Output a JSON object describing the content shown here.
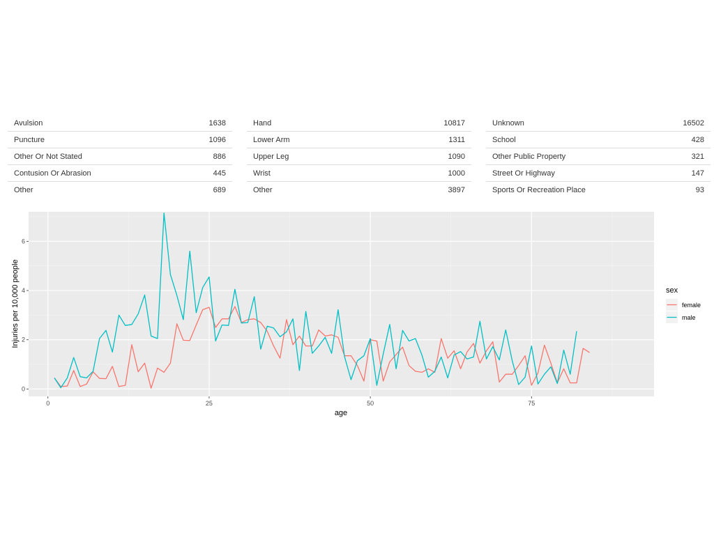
{
  "tables": [
    {
      "rows": [
        {
          "label": "Avulsion",
          "value": "1638"
        },
        {
          "label": "Puncture",
          "value": "1096"
        },
        {
          "label": "Other Or Not Stated",
          "value": "886"
        },
        {
          "label": "Contusion Or Abrasion",
          "value": "445"
        },
        {
          "label": "Other",
          "value": "689"
        }
      ]
    },
    {
      "rows": [
        {
          "label": "Hand",
          "value": "10817"
        },
        {
          "label": "Lower Arm",
          "value": "1311"
        },
        {
          "label": "Upper Leg",
          "value": "1090"
        },
        {
          "label": "Wrist",
          "value": "1000"
        },
        {
          "label": "Other",
          "value": "3897"
        }
      ]
    },
    {
      "rows": [
        {
          "label": "Unknown",
          "value": "16502"
        },
        {
          "label": "School",
          "value": "428"
        },
        {
          "label": "Other Public Property",
          "value": "321"
        },
        {
          "label": "Street Or Highway",
          "value": "147"
        },
        {
          "label": "Sports Or Recreation Place",
          "value": "93"
        }
      ]
    }
  ],
  "chart_data": {
    "type": "line",
    "xlabel": "age",
    "ylabel": "Injuries per 10,000 people",
    "xlim": [
      -3,
      94
    ],
    "ylim": [
      -0.3,
      7.2
    ],
    "xticks": [
      0,
      25,
      50,
      75
    ],
    "yticks": [
      0,
      2,
      4,
      6
    ],
    "legend_title": "sex",
    "legend_position": "right",
    "series": [
      {
        "name": "female",
        "color": "#F8766D",
        "x": [
          1,
          2,
          3,
          4,
          5,
          6,
          7,
          8,
          9,
          10,
          11,
          12,
          13,
          14,
          15,
          16,
          17,
          18,
          19,
          20,
          21,
          22,
          23,
          24,
          25,
          26,
          27,
          28,
          29,
          30,
          31,
          32,
          33,
          34,
          35,
          36,
          37,
          38,
          39,
          40,
          41,
          42,
          43,
          44,
          45,
          46,
          47,
          48,
          49,
          50,
          51,
          52,
          53,
          54,
          55,
          56,
          57,
          58,
          59,
          60,
          61,
          62,
          63,
          64,
          65,
          66,
          67,
          68,
          69,
          70,
          71,
          72,
          73,
          74,
          75,
          76,
          77,
          78,
          79,
          80,
          81,
          82,
          83,
          84
        ],
        "y": [
          0.45,
          0.1,
          0.12,
          0.75,
          0.1,
          0.2,
          0.7,
          0.43,
          0.42,
          0.92,
          0.1,
          0.15,
          1.8,
          0.7,
          1.05,
          0.03,
          0.85,
          0.68,
          1.05,
          2.65,
          1.98,
          1.97,
          2.6,
          3.22,
          3.32,
          2.5,
          2.85,
          2.85,
          3.35,
          2.7,
          2.82,
          2.85,
          2.7,
          2.35,
          1.75,
          1.25,
          2.82,
          1.8,
          2.15,
          1.75,
          1.75,
          2.4,
          2.15,
          2.2,
          2.1,
          1.35,
          1.35,
          0.95,
          0.32,
          2.0,
          1.95,
          0.32,
          1.1,
          1.4,
          1.7,
          0.95,
          0.72,
          0.68,
          0.82,
          0.68,
          2.05,
          1.25,
          1.55,
          0.82,
          1.5,
          1.85,
          1.05,
          1.55,
          1.92,
          0.28,
          0.6,
          0.6,
          0.95,
          1.35,
          0.15,
          0.65,
          1.78,
          1.05,
          0.25,
          0.82,
          0.25,
          0.25,
          1.65,
          1.48
        ]
      },
      {
        "name": "male",
        "color": "#00BFC4",
        "x": [
          1,
          2,
          3,
          4,
          5,
          6,
          7,
          8,
          9,
          10,
          11,
          12,
          13,
          14,
          15,
          16,
          17,
          18,
          19,
          20,
          21,
          22,
          23,
          24,
          25,
          26,
          27,
          28,
          29,
          30,
          31,
          32,
          33,
          34,
          35,
          36,
          37,
          38,
          39,
          40,
          41,
          42,
          43,
          44,
          45,
          46,
          47,
          48,
          49,
          50,
          51,
          52,
          53,
          54,
          55,
          56,
          57,
          58,
          59,
          60,
          61,
          62,
          63,
          64,
          65,
          66,
          67,
          68,
          69,
          70,
          71,
          72,
          73,
          74,
          75,
          76,
          77,
          78,
          79,
          80,
          81,
          82
        ],
        "y": [
          0.45,
          0.05,
          0.45,
          1.28,
          0.5,
          0.45,
          0.72,
          2.05,
          2.38,
          1.5,
          3.0,
          2.58,
          2.62,
          3.05,
          3.82,
          2.15,
          2.05,
          7.15,
          4.65,
          3.8,
          2.82,
          5.6,
          3.1,
          4.12,
          4.55,
          1.95,
          2.6,
          2.58,
          4.05,
          2.68,
          2.7,
          3.75,
          1.62,
          2.55,
          2.48,
          2.12,
          2.32,
          2.85,
          0.75,
          3.15,
          1.45,
          1.75,
          2.1,
          1.45,
          3.22,
          1.32,
          0.38,
          1.15,
          1.35,
          2.05,
          0.15,
          1.42,
          2.62,
          0.82,
          2.38,
          1.95,
          2.05,
          1.38,
          0.48,
          0.72,
          1.3,
          0.45,
          1.38,
          1.52,
          1.22,
          1.3,
          2.75,
          1.22,
          1.72,
          1.18,
          2.4,
          1.15,
          0.18,
          0.48,
          1.75,
          0.2,
          0.6,
          0.9,
          0.22,
          1.58,
          0.6,
          2.35
        ]
      }
    ]
  }
}
